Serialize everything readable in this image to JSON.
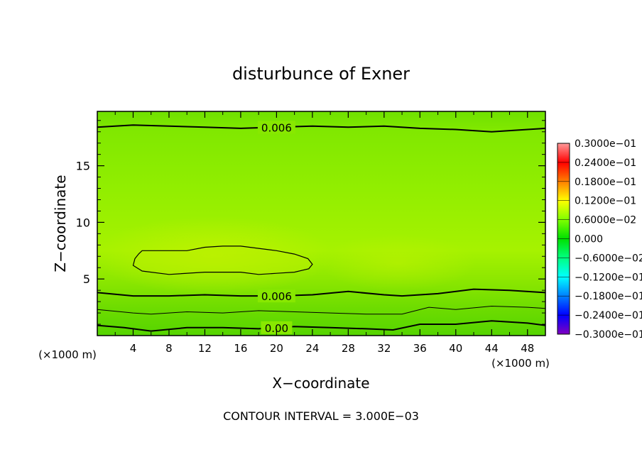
{
  "chart_data": {
    "type": "heatmap",
    "title": "disturbunce of Exner",
    "xlabel": "X−coordinate",
    "ylabel": "Z−coordinate",
    "x_unit": "(×1000 m)",
    "y_unit": "(×1000 m)",
    "xlim": [
      0,
      50
    ],
    "ylim": [
      0,
      19.8
    ],
    "x_ticks": [
      4,
      8,
      12,
      16,
      20,
      24,
      28,
      32,
      36,
      40,
      44,
      48
    ],
    "y_ticks": [
      5,
      10,
      15
    ],
    "footer": "CONTOUR INTERVAL = 3.000E−03",
    "colorbar": {
      "labels": [
        "0.3000e−01",
        "0.2400e−01",
        "0.1800e−01",
        "0.1200e−01",
        "0.6000e−02",
        "0.000",
        "−0.6000e−02",
        "−0.1200e−01",
        "−0.1800e−01",
        "−0.2400e−01",
        "−0.3000e−01"
      ],
      "min": -0.03,
      "max": 0.03,
      "colors": [
        "#ff9a9a",
        "#ff0000",
        "#ff7f00",
        "#ffff00",
        "#80ff00",
        "#00e000",
        "#00ff80",
        "#00ffff",
        "#0080ff",
        "#0000ff",
        "#8000c0"
      ]
    },
    "field_fill_color": "#7fe600",
    "contours": [
      {
        "level_label": "0.006",
        "x": [
          0,
          4,
          8,
          12,
          16,
          20,
          24,
          28,
          32,
          36,
          40,
          44,
          48,
          50
        ],
        "y": [
          18.4,
          18.6,
          18.5,
          18.4,
          18.3,
          18.4,
          18.5,
          18.4,
          18.5,
          18.3,
          18.2,
          18.0,
          18.2,
          18.3
        ]
      },
      {
        "level_label": "0.006",
        "x": [
          0,
          4,
          8,
          12,
          16,
          20,
          24,
          28,
          32,
          34,
          38,
          42,
          46,
          50
        ],
        "y": [
          3.8,
          3.5,
          3.5,
          3.6,
          3.5,
          3.5,
          3.6,
          3.9,
          3.6,
          3.5,
          3.7,
          4.1,
          4.0,
          3.8
        ]
      },
      {
        "level_label": "",
        "x": [
          0,
          4,
          6,
          10,
          14,
          18,
          22,
          26,
          30,
          34,
          37,
          40,
          44,
          48,
          50
        ],
        "y": [
          2.3,
          2.0,
          1.9,
          2.1,
          2.0,
          2.2,
          2.1,
          2.0,
          1.9,
          1.9,
          2.5,
          2.3,
          2.6,
          2.5,
          2.4
        ]
      },
      {
        "level_label": "0.00",
        "x": [
          0,
          3,
          6,
          10,
          14,
          18,
          22,
          26,
          30,
          33,
          36,
          40,
          44,
          48,
          50
        ],
        "y": [
          0.9,
          0.7,
          0.4,
          0.7,
          0.7,
          0.6,
          0.8,
          0.7,
          0.6,
          0.5,
          1.0,
          1.0,
          1.3,
          1.1,
          0.9
        ]
      }
    ],
    "closed_contour": {
      "x": [
        4.6,
        5.0,
        10.0,
        12.0,
        14.0,
        16.0,
        18.0,
        20.0,
        22.0,
        23.5,
        24.0,
        23.6,
        22.0,
        20.0,
        18.0,
        16.0,
        12.0,
        8.0,
        5.0,
        4.0,
        4.2
      ],
      "y": [
        7.2,
        7.5,
        7.5,
        7.8,
        7.9,
        7.9,
        7.7,
        7.5,
        7.2,
        6.8,
        6.3,
        5.9,
        5.6,
        5.5,
        5.4,
        5.6,
        5.6,
        5.4,
        5.7,
        6.2,
        6.8
      ]
    }
  }
}
